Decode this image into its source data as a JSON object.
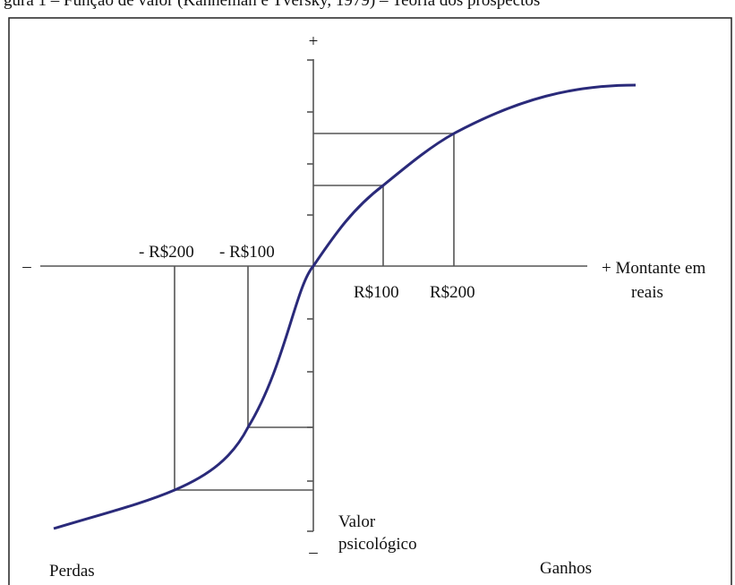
{
  "header": {
    "title": "gura 1 – Função de valor (Kahneman e Tversky, 1979) – Teoria dos prospectos"
  },
  "axis": {
    "plus_top": "+",
    "minus_bottom": "–",
    "minus_left": "–",
    "x_label_line1": "+ Montante em",
    "x_label_line2": "reais",
    "y_label_line1": "Valor",
    "y_label_line2": "psicológico"
  },
  "ticks": {
    "neg200": "- R$200",
    "neg100": "- R$100",
    "pos100": "R$100",
    "pos200": "R$200"
  },
  "regions": {
    "losses": "Perdas",
    "gains": "Ganhos"
  }
}
